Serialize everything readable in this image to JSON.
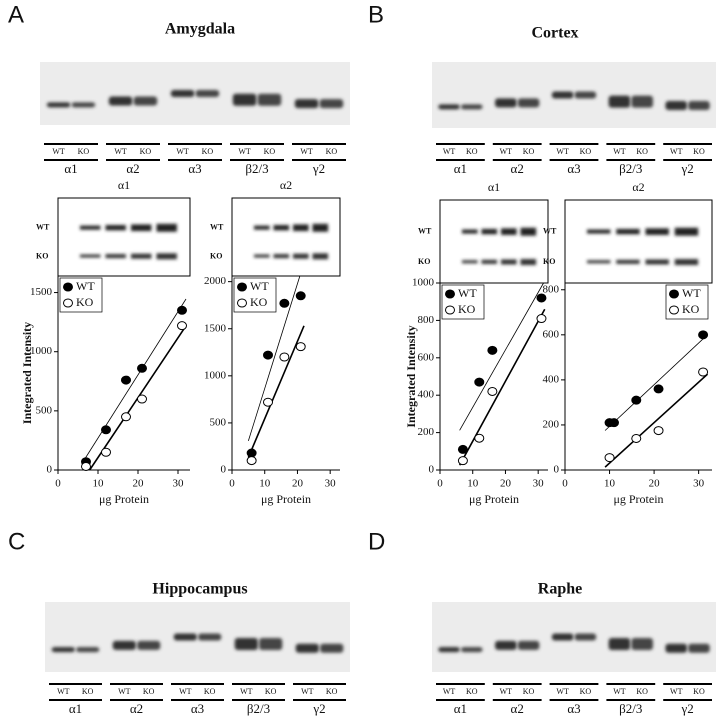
{
  "panels": [
    {
      "letter": "A",
      "title": "Amygdala",
      "lanes": [
        {
          "wt": "WT",
          "ko": "KO",
          "subunit": "α1"
        },
        {
          "wt": "WT",
          "ko": "KO",
          "subunit": "α2"
        },
        {
          "wt": "WT",
          "ko": "KO",
          "subunit": "α3"
        },
        {
          "wt": "WT",
          "ko": "KO",
          "subunit": "β2/3"
        },
        {
          "wt": "WT",
          "ko": "KO",
          "subunit": "γ2"
        }
      ]
    },
    {
      "letter": "B",
      "title": "Cortex",
      "lanes": [
        {
          "wt": "WT",
          "ko": "KO",
          "subunit": "α1"
        },
        {
          "wt": "WT",
          "ko": "KO",
          "subunit": "α2"
        },
        {
          "wt": "WT",
          "ko": "KO",
          "subunit": "α3"
        },
        {
          "wt": "WT",
          "ko": "KO",
          "subunit": "β2/3"
        },
        {
          "wt": "WT",
          "ko": "KO",
          "subunit": "γ2"
        }
      ]
    },
    {
      "letter": "C",
      "title": "Hippocampus",
      "lanes": [
        {
          "wt": "WT",
          "ko": "KO",
          "subunit": "α1"
        },
        {
          "wt": "WT",
          "ko": "KO",
          "subunit": "α2"
        },
        {
          "wt": "WT",
          "ko": "KO",
          "subunit": "α3"
        },
        {
          "wt": "WT",
          "ko": "KO",
          "subunit": "β2/3"
        },
        {
          "wt": "WT",
          "ko": "KO",
          "subunit": "γ2"
        }
      ]
    },
    {
      "letter": "D",
      "title": "Raphe",
      "lanes": [
        {
          "wt": "WT",
          "ko": "KO",
          "subunit": "α1"
        },
        {
          "wt": "WT",
          "ko": "KO",
          "subunit": "α2"
        },
        {
          "wt": "WT",
          "ko": "KO",
          "subunit": "α3"
        },
        {
          "wt": "WT",
          "ko": "KO",
          "subunit": "β2/3"
        },
        {
          "wt": "WT",
          "ko": "KO",
          "subunit": "γ2"
        }
      ]
    }
  ],
  "chart_data": [
    {
      "type": "scatter",
      "title": "α1",
      "inset_labels": [
        "WT",
        "KO"
      ],
      "ylabel": "Integrated Intensity",
      "xlabel": "μg Protein",
      "xlim": [
        0,
        33
      ],
      "ylim": [
        0,
        1640
      ],
      "xticks": [
        0,
        10,
        20,
        30
      ],
      "yticks": [
        0,
        500,
        1000,
        1500
      ],
      "fit_lines": true,
      "legend": "upper left",
      "series": [
        {
          "name": "WT",
          "marker": "filled",
          "color": "#000000",
          "x": [
            7,
            12,
            17,
            21,
            31
          ],
          "values": [
            70,
            340,
            760,
            860,
            1350
          ]
        },
        {
          "name": "KO",
          "marker": "open",
          "color": "#000000",
          "x": [
            7,
            12,
            17,
            21,
            31
          ],
          "values": [
            30,
            150,
            450,
            600,
            1220
          ]
        }
      ]
    },
    {
      "type": "scatter",
      "title": "α2",
      "inset_labels": [
        "WT",
        "KO"
      ],
      "xlabel": "μg Protein",
      "xlim": [
        0,
        33
      ],
      "ylim": [
        0,
        2060
      ],
      "xticks": [
        0,
        10,
        20,
        30
      ],
      "yticks": [
        0,
        500,
        1000,
        1500,
        2000
      ],
      "fit_lines": true,
      "legend": "upper left",
      "series": [
        {
          "name": "WT",
          "marker": "filled",
          "color": "#000000",
          "x": [
            6,
            11,
            16,
            21
          ],
          "values": [
            180,
            1220,
            1770,
            1850
          ]
        },
        {
          "name": "KO",
          "marker": "open",
          "color": "#000000",
          "x": [
            6,
            11,
            16,
            21
          ],
          "values": [
            100,
            720,
            1200,
            1310
          ]
        }
      ]
    },
    {
      "type": "scatter",
      "title": "α1",
      "inset_labels": [
        "WT",
        "KO"
      ],
      "ylabel": "Integrated Intensity",
      "xlabel": "μg Protein",
      "xlim": [
        0,
        33
      ],
      "ylim": [
        0,
        1000
      ],
      "xticks": [
        0,
        10,
        20,
        30
      ],
      "yticks": [
        0,
        200,
        400,
        600,
        800,
        1000
      ],
      "fit_lines": true,
      "legend": "upper left",
      "series": [
        {
          "name": "WT",
          "marker": "filled",
          "color": "#000000",
          "x": [
            7,
            12,
            16,
            31
          ],
          "values": [
            110,
            470,
            640,
            920
          ]
        },
        {
          "name": "KO",
          "marker": "open",
          "color": "#000000",
          "x": [
            7,
            12,
            16,
            31
          ],
          "values": [
            50,
            170,
            420,
            810
          ]
        }
      ]
    },
    {
      "type": "scatter",
      "title": "α2",
      "inset_labels": [
        "WT",
        "KO"
      ],
      "xlabel": "μg Protein",
      "xlim": [
        0,
        33
      ],
      "ylim": [
        0,
        830
      ],
      "xticks": [
        0,
        10,
        20,
        30
      ],
      "yticks": [
        0,
        200,
        400,
        600,
        800
      ],
      "fit_lines": true,
      "legend": "upper right",
      "series": [
        {
          "name": "WT",
          "marker": "filled",
          "color": "#000000",
          "x": [
            10,
            11,
            16,
            21,
            31
          ],
          "values": [
            210,
            210,
            310,
            360,
            600
          ]
        },
        {
          "name": "KO",
          "marker": "open",
          "color": "#000000",
          "x": [
            10,
            16,
            21,
            31
          ],
          "values": [
            55,
            140,
            175,
            435
          ]
        }
      ]
    }
  ]
}
